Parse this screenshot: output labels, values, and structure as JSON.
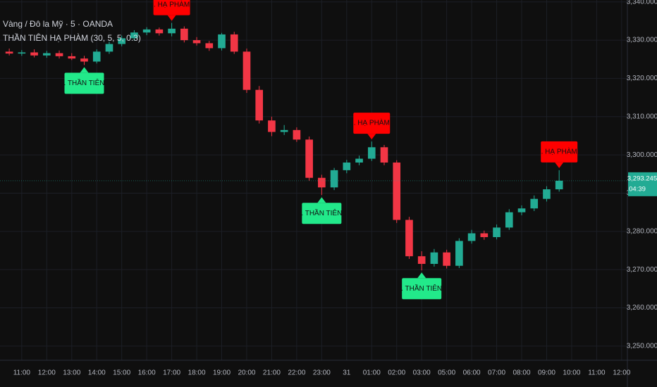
{
  "chart_data": {
    "type": "candlestick",
    "title": "Vàng / Đô la Mỹ · 5 · OANDA",
    "indicator": "THẦN TIÊN HẠ PHÀM (30, 5, 5, 0.3)",
    "up_color": "#22ab94",
    "down_color": "#f23645",
    "grid": true,
    "xlim": [
      -0.87,
      24.23
    ],
    "ylim": [
      3246.3,
      3340.5
    ],
    "xticks": [
      {
        "value": 0,
        "label": "11:00"
      },
      {
        "value": 1,
        "label": "12:00"
      },
      {
        "value": 2,
        "label": "13:00"
      },
      {
        "value": 3,
        "label": "14:00"
      },
      {
        "value": 4,
        "label": "15:00"
      },
      {
        "value": 5,
        "label": "16:00"
      },
      {
        "value": 6,
        "label": "17:00"
      },
      {
        "value": 7,
        "label": "18:00"
      },
      {
        "value": 8,
        "label": "19:00"
      },
      {
        "value": 9,
        "label": "20:00"
      },
      {
        "value": 10,
        "label": "21:00"
      },
      {
        "value": 11,
        "label": "22:00"
      },
      {
        "value": 12,
        "label": "23:00"
      },
      {
        "value": 13,
        "label": "31"
      },
      {
        "value": 14,
        "label": "01:00"
      },
      {
        "value": 15,
        "label": "02:00"
      },
      {
        "value": 16,
        "label": "03:00"
      },
      {
        "value": 17,
        "label": "05:00"
      },
      {
        "value": 18,
        "label": "06:00"
      },
      {
        "value": 19,
        "label": "07:00"
      },
      {
        "value": 20,
        "label": "08:00"
      },
      {
        "value": 21,
        "label": "09:00"
      },
      {
        "value": 22,
        "label": "10:00"
      },
      {
        "value": 23,
        "label": "11:00"
      },
      {
        "value": 24,
        "label": "12:00"
      }
    ],
    "yticks": [
      {
        "value": 3250,
        "label": "3,250.000"
      },
      {
        "value": 3260,
        "label": "3,260.000"
      },
      {
        "value": 3270,
        "label": "3,270.000"
      },
      {
        "value": 3280,
        "label": "3,280.000"
      },
      {
        "value": 3290,
        "label": "3,290.000"
      },
      {
        "value": 3300,
        "label": "3,300.000"
      },
      {
        "value": 3310,
        "label": "3,310.000"
      },
      {
        "value": 3320,
        "label": "3,320.000"
      },
      {
        "value": 3330,
        "label": "3,330.000"
      },
      {
        "value": 3340,
        "label": "3,340.000"
      }
    ],
    "x": [
      -0.5,
      0,
      0.5,
      1,
      1.5,
      2,
      2.5,
      3,
      3.5,
      4,
      4.5,
      5,
      5.5,
      6,
      6.5,
      7,
      7.5,
      8,
      8.5,
      9,
      9.5,
      10,
      10.5,
      11,
      11.5,
      12,
      12.5,
      13,
      13.5,
      14,
      14.5,
      15,
      15.5,
      16,
      16.5,
      17,
      17.5,
      18,
      18.5,
      19,
      19.5,
      20,
      20.5,
      21,
      21.5
    ],
    "open": [
      3327.0,
      3326.5,
      3326.8,
      3326.0,
      3326.6,
      3325.8,
      3325.2,
      3324.4,
      3327.0,
      3329.0,
      3330.5,
      3332.0,
      3332.8,
      3331.8,
      3333.0,
      3330.0,
      3329.2,
      3327.9,
      3331.5,
      3327.0,
      3317.0,
      3309.0,
      3306.0,
      3306.5,
      3304.0,
      3294.0,
      3291.5,
      3296.0,
      3298.0,
      3299.0,
      3302.0,
      3298.0,
      3283.0,
      3273.5,
      3271.5,
      3274.5,
      3271.0,
      3277.5,
      3279.5,
      3278.5,
      3281.0,
      3285.0,
      3286.0,
      3288.5,
      3291.0
    ],
    "high": [
      3327.8,
      3327.4,
      3327.6,
      3327.2,
      3327.3,
      3326.6,
      3325.9,
      3327.6,
      3329.6,
      3331.2,
      3332.6,
      3333.4,
      3333.3,
      3334.5,
      3333.6,
      3330.8,
      3329.8,
      3331.9,
      3332.2,
      3327.8,
      3318.0,
      3310.0,
      3307.8,
      3307.2,
      3304.8,
      3294.8,
      3296.6,
      3298.7,
      3299.8,
      3303.5,
      3302.6,
      3298.6,
      3283.8,
      3274.8,
      3275.4,
      3275.2,
      3278.2,
      3280.4,
      3280.2,
      3281.8,
      3285.8,
      3286.8,
      3289.4,
      3291.8,
      3296.0
    ],
    "low": [
      3326.0,
      3325.9,
      3325.5,
      3325.4,
      3325.2,
      3324.8,
      3323.5,
      3323.9,
      3326.4,
      3328.4,
      3329.9,
      3331.3,
      3331.2,
      3331.0,
      3329.4,
      3328.6,
      3327.2,
      3327.3,
      3326.4,
      3316.2,
      3308.2,
      3304.9,
      3305.2,
      3303.4,
      3293.2,
      3289.5,
      3290.8,
      3295.2,
      3297.3,
      3298.4,
      3297.3,
      3282.2,
      3272.8,
      3269.8,
      3270.8,
      3270.3,
      3270.4,
      3276.8,
      3277.8,
      3277.9,
      3280.4,
      3284.2,
      3285.3,
      3287.8,
      3290.4
    ],
    "close": [
      3326.5,
      3326.8,
      3326.0,
      3326.6,
      3325.8,
      3325.2,
      3324.4,
      3327.0,
      3329.0,
      3330.5,
      3332.0,
      3332.8,
      3331.8,
      3333.0,
      3330.0,
      3329.2,
      3327.9,
      3331.5,
      3327.0,
      3317.0,
      3309.0,
      3306.0,
      3306.5,
      3304.0,
      3294.0,
      3291.5,
      3296.0,
      3298.0,
      3299.0,
      3302.0,
      3298.0,
      3283.0,
      3273.5,
      3271.5,
      3274.5,
      3271.0,
      3277.5,
      3279.5,
      3278.5,
      3281.0,
      3285.0,
      3286.0,
      3288.5,
      3291.0,
      3293.245
    ],
    "last_price": {
      "value": 3293.245,
      "label": "3,293.245"
    },
    "countdown": "04:39",
    "signals": [
      {
        "label": ". HẠ PHÀM",
        "x": 6,
        "color": "#ff0000"
      },
      {
        "label": ". THẦN TIÊN",
        "x": 2.5,
        "color": "#22e98a"
      },
      {
        "label": ". THẦN TIÊN",
        "x": 12,
        "color": "#22e98a"
      },
      {
        "label": ". HẠ PHÀM",
        "x": 14,
        "color": "#ff0000"
      },
      {
        "label": ". THẦN TIÊN",
        "x": 16,
        "color": "#22e98a"
      },
      {
        "label": ". HẠ PHÀM",
        "x": 21.5,
        "color": "#ff0000"
      }
    ]
  }
}
